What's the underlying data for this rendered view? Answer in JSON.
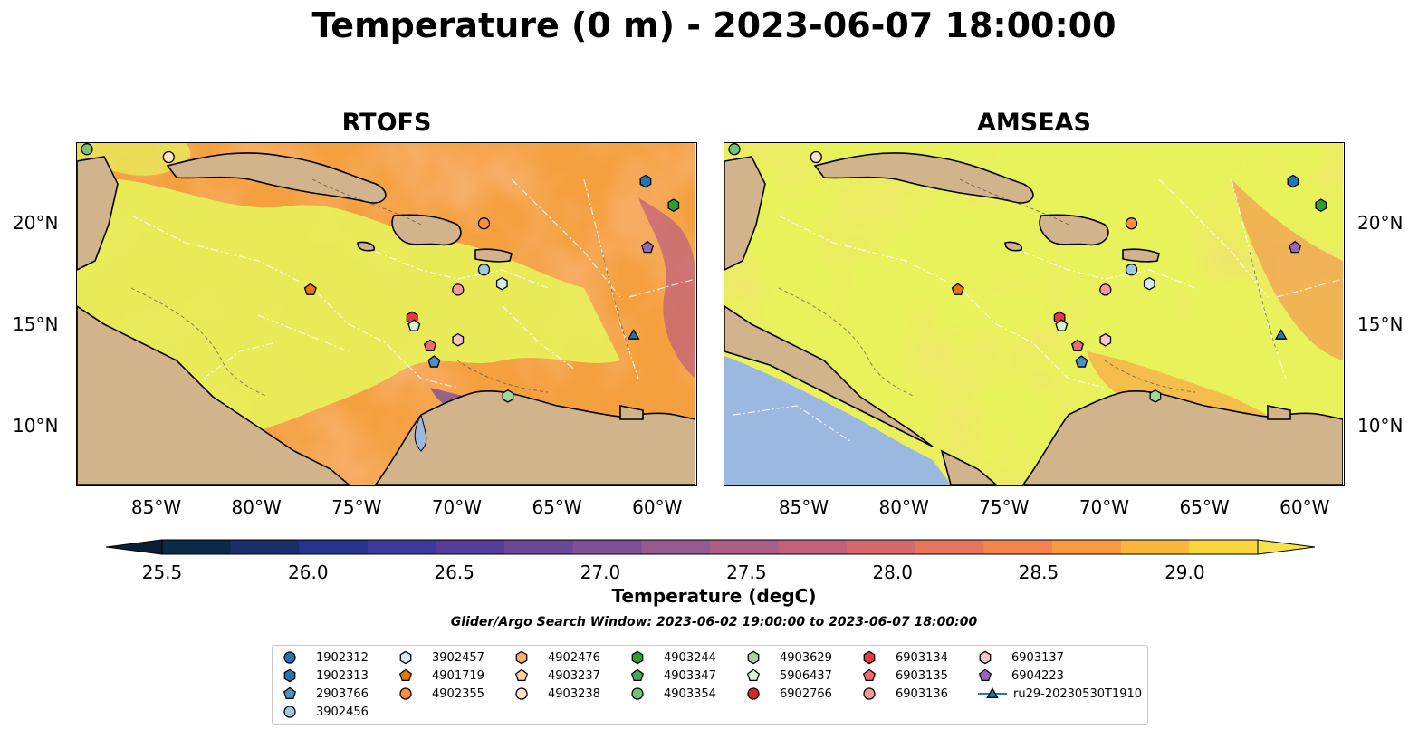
{
  "title": "Temperature (0 m) - 2023-06-07 18:00:00",
  "panels": [
    {
      "title": "RTOFS",
      "ocean_color": "#e8f25a"
    },
    {
      "title": "AMSEAS",
      "ocean_color": "#e8f25a"
    }
  ],
  "map": {
    "lon_range": [
      -89,
      -58
    ],
    "lat_range": [
      7,
      24
    ],
    "lon_ticks": [
      "85°W",
      "80°W",
      "75°W",
      "70°W",
      "65°W",
      "60°W"
    ],
    "lat_ticks": [
      "20°N",
      "15°N",
      "10°N"
    ],
    "land_color": "#d2b48c"
  },
  "colorbar": {
    "label": "Temperature (degC)",
    "ticks": [
      "25.5",
      "26.0",
      "26.5",
      "27.0",
      "27.5",
      "28.0",
      "28.5",
      "29.0"
    ],
    "min": 25.5,
    "max": 29.25,
    "colors": [
      "#0a2a45",
      "#1a2f6a",
      "#26358c",
      "#3b3a9a",
      "#553e9b",
      "#6b4798",
      "#7f5095",
      "#955a90",
      "#ab5f86",
      "#c2627a",
      "#d6686c",
      "#e8745c",
      "#f5844c",
      "#fb9a42",
      "#fcb63c",
      "#fad53e"
    ]
  },
  "search_window": "Glider/Argo Search Window: 2023-06-02 19:00:00 to 2023-06-07 18:00:00",
  "legend": [
    {
      "id": "1902312",
      "marker": "circle",
      "color": "#1f77b4"
    },
    {
      "id": "1902313",
      "marker": "hexagon",
      "color": "#1f77b4"
    },
    {
      "id": "2903766",
      "marker": "pentagon",
      "color": "#4a90c4"
    },
    {
      "id": "3902456",
      "marker": "circle",
      "color": "#9ecae1"
    },
    {
      "id": "3902457",
      "marker": "hexagon",
      "color": "#d6ebf7"
    },
    {
      "id": "4901719",
      "marker": "pentagon",
      "color": "#e6750a"
    },
    {
      "id": "4902355",
      "marker": "circle",
      "color": "#fd8d3c"
    },
    {
      "id": "4902476",
      "marker": "hexagon",
      "color": "#fdae6b"
    },
    {
      "id": "4903237",
      "marker": "pentagon",
      "color": "#fdd0a2"
    },
    {
      "id": "4903238",
      "marker": "circle",
      "color": "#fde4c8"
    },
    {
      "id": "4903244",
      "marker": "hexagon",
      "color": "#2ca02c"
    },
    {
      "id": "4903347",
      "marker": "pentagon",
      "color": "#41ab5d"
    },
    {
      "id": "4903354",
      "marker": "circle",
      "color": "#74c476"
    },
    {
      "id": "4903629",
      "marker": "hexagon",
      "color": "#a1d99b"
    },
    {
      "id": "5906437",
      "marker": "pentagon",
      "color": "#d9f4d3"
    },
    {
      "id": "6902766",
      "marker": "circle",
      "color": "#d62728"
    },
    {
      "id": "6903134",
      "marker": "hexagon",
      "color": "#e8393f"
    },
    {
      "id": "6903135",
      "marker": "pentagon",
      "color": "#f16a72"
    },
    {
      "id": "6903136",
      "marker": "circle",
      "color": "#f49a9a"
    },
    {
      "id": "6903137",
      "marker": "hexagon",
      "color": "#f8c6c6"
    },
    {
      "id": "6904223",
      "marker": "pentagon",
      "color": "#9467bd"
    },
    {
      "id": "ru29-20230530T1910",
      "marker": "triangle-line",
      "color": "#1f77b4"
    }
  ],
  "platforms": [
    {
      "id": "4903354",
      "lon": -88.5,
      "lat": 23.7
    },
    {
      "id": "4903238",
      "lon": -84.4,
      "lat": 23.3
    },
    {
      "id": "1902313",
      "lon": -60.5,
      "lat": 22.1
    },
    {
      "id": "4903244",
      "lon": -59.1,
      "lat": 20.9
    },
    {
      "id": "4902355",
      "lon": -68.6,
      "lat": 20.0
    },
    {
      "id": "6904223",
      "lon": -60.4,
      "lat": 18.8
    },
    {
      "id": "3902456",
      "lon": -68.6,
      "lat": 17.7
    },
    {
      "id": "3902457",
      "lon": -67.7,
      "lat": 17.0
    },
    {
      "id": "4901719",
      "lon": -77.3,
      "lat": 16.7
    },
    {
      "id": "6903136",
      "lon": -69.9,
      "lat": 16.7
    },
    {
      "id": "6903134",
      "lon": -72.2,
      "lat": 15.3
    },
    {
      "id": "5906437",
      "lon": -72.1,
      "lat": 14.9
    },
    {
      "id": "6903137",
      "lon": -69.9,
      "lat": 14.2
    },
    {
      "id": "6903135",
      "lon": -71.3,
      "lat": 13.9
    },
    {
      "id": "2903766",
      "lon": -71.1,
      "lat": 13.1
    },
    {
      "id": "4903629",
      "lon": -67.4,
      "lat": 11.4
    },
    {
      "id": "ru29-20230530T1910",
      "lon": -61.1,
      "lat": 14.4
    }
  ]
}
